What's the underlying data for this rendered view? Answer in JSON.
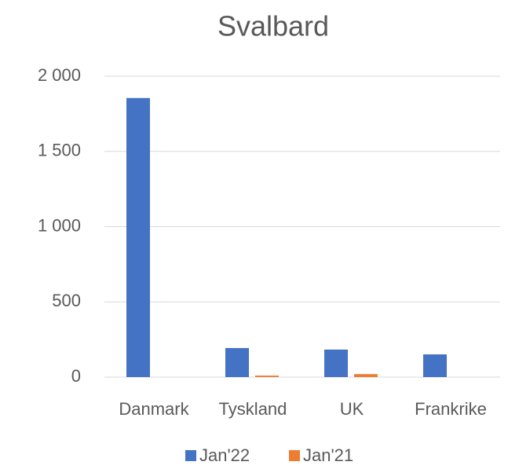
{
  "chart_data": {
    "type": "bar",
    "title": "Svalbard",
    "categories": [
      "Danmark",
      "Tyskland",
      "UK",
      "Frankrike"
    ],
    "series": [
      {
        "name": "Jan'22",
        "color": "#4472c4",
        "values": [
          1855,
          193,
          183,
          151
        ]
      },
      {
        "name": "Jan'21",
        "color": "#ed7d31",
        "values": [
          0,
          10,
          20,
          0
        ]
      }
    ],
    "ylim": [
      0,
      2000
    ],
    "yticks": [
      0,
      500,
      {
        "value": 1000,
        "label": "1 000"
      },
      {
        "value": 1500,
        "label": "1 500"
      },
      {
        "value": 2000,
        "label": "2 000"
      }
    ],
    "grid": true,
    "legend": "bottom"
  }
}
